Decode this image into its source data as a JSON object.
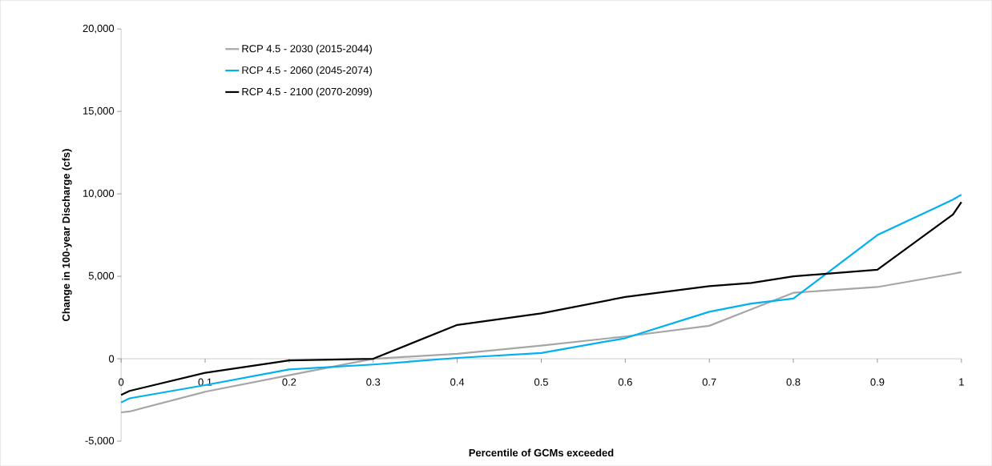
{
  "chart_data": {
    "type": "line",
    "xlabel": "Percentile of GCMs exceeded",
    "ylabel": "Change in 100-year Discharge (cfs)",
    "x": [
      0,
      0.01,
      0.1,
      0.2,
      0.3,
      0.4,
      0.5,
      0.6,
      0.7,
      0.75,
      0.8,
      0.9,
      0.99,
      1
    ],
    "series": [
      {
        "name": "RCP 4.5 - 2030 (2015-2044)",
        "color": "#a6a6a6",
        "values": [
          -3250,
          -3200,
          -2000,
          -1000,
          0,
          300,
          800,
          1350,
          2000,
          3000,
          4000,
          4350,
          5150,
          5250
        ]
      },
      {
        "name": "RCP 4.5 - 2060 (2045-2074)",
        "color": "#00b0f0",
        "values": [
          -2650,
          -2400,
          -1600,
          -650,
          -350,
          50,
          350,
          1250,
          2850,
          3350,
          3650,
          7500,
          9650,
          9950
        ]
      },
      {
        "name": "RCP 4.5 - 2100 (2070-2099)",
        "color": "#000000",
        "values": [
          -2200,
          -1950,
          -850,
          -100,
          0,
          2050,
          2750,
          3750,
          4400,
          4600,
          5000,
          5400,
          8750,
          9500
        ]
      }
    ],
    "xlim": [
      0,
      1
    ],
    "ylim": [
      -5000,
      20000
    ],
    "xticks": [
      0,
      0.1,
      0.2,
      0.3,
      0.4,
      0.5,
      0.6,
      0.7,
      0.8,
      0.9,
      1
    ],
    "yticks": [
      {
        "value": -5000,
        "label": "-5,000"
      },
      0,
      {
        "value": 5000,
        "label": "5,000"
      },
      {
        "value": 10000,
        "label": "10,000"
      },
      {
        "value": 15000,
        "label": "15,000"
      },
      {
        "value": 20000,
        "label": "20,000"
      }
    ],
    "grid": false,
    "legend": "top left",
    "marker": "none",
    "line_style": "solid"
  }
}
